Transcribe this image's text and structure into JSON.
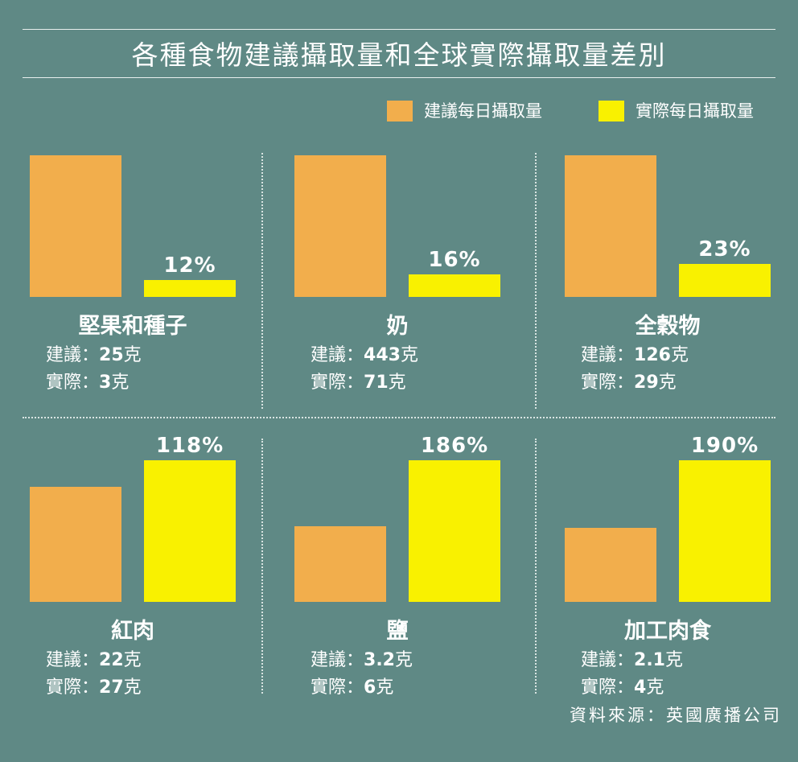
{
  "title": "各種食物建議攝取量和全球實際攝取量差別",
  "legend": {
    "recommended": "建議每日攝取量",
    "actual": "實際每日攝取量"
  },
  "colors": {
    "background": "#5f8985",
    "recommended": "#f2ae4c",
    "actual": "#f9f100",
    "text": "#ffffff"
  },
  "labels": {
    "recommended_prefix": "建議：",
    "actual_prefix": "實際："
  },
  "chart_data": [
    {
      "type": "bar",
      "title": "堅果和種子",
      "categories": [
        "建議每日攝取量",
        "實際每日攝取量"
      ],
      "values": [
        25,
        3
      ],
      "unit": "克",
      "recommended_text": "25",
      "actual_text": "3",
      "percent_label": "12%"
    },
    {
      "type": "bar",
      "title": "奶",
      "categories": [
        "建議每日攝取量",
        "實際每日攝取量"
      ],
      "values": [
        443,
        71
      ],
      "unit": "克",
      "recommended_text": "443",
      "actual_text": "71",
      "percent_label": "16%"
    },
    {
      "type": "bar",
      "title": "全穀物",
      "categories": [
        "建議每日攝取量",
        "實際每日攝取量"
      ],
      "values": [
        126,
        29
      ],
      "unit": "克",
      "recommended_text": "126",
      "actual_text": "29",
      "percent_label": "23%"
    },
    {
      "type": "bar",
      "title": "紅肉",
      "categories": [
        "建議每日攝取量",
        "實際每日攝取量"
      ],
      "values": [
        22,
        27
      ],
      "unit": "克",
      "recommended_text": "22",
      "actual_text": "27",
      "percent_label": "118%"
    },
    {
      "type": "bar",
      "title": "鹽",
      "categories": [
        "建議每日攝取量",
        "實際每日攝取量"
      ],
      "values": [
        3.2,
        6
      ],
      "unit": "克",
      "recommended_text": "3.2",
      "actual_text": "6",
      "percent_label": "186%"
    },
    {
      "type": "bar",
      "title": "加工肉食",
      "categories": [
        "建議每日攝取量",
        "實際每日攝取量"
      ],
      "values": [
        2.1,
        4
      ],
      "unit": "克",
      "recommended_text": "2.1",
      "actual_text": "4",
      "percent_label": "190%"
    }
  ],
  "source": "資料來源：英國廣播公司"
}
